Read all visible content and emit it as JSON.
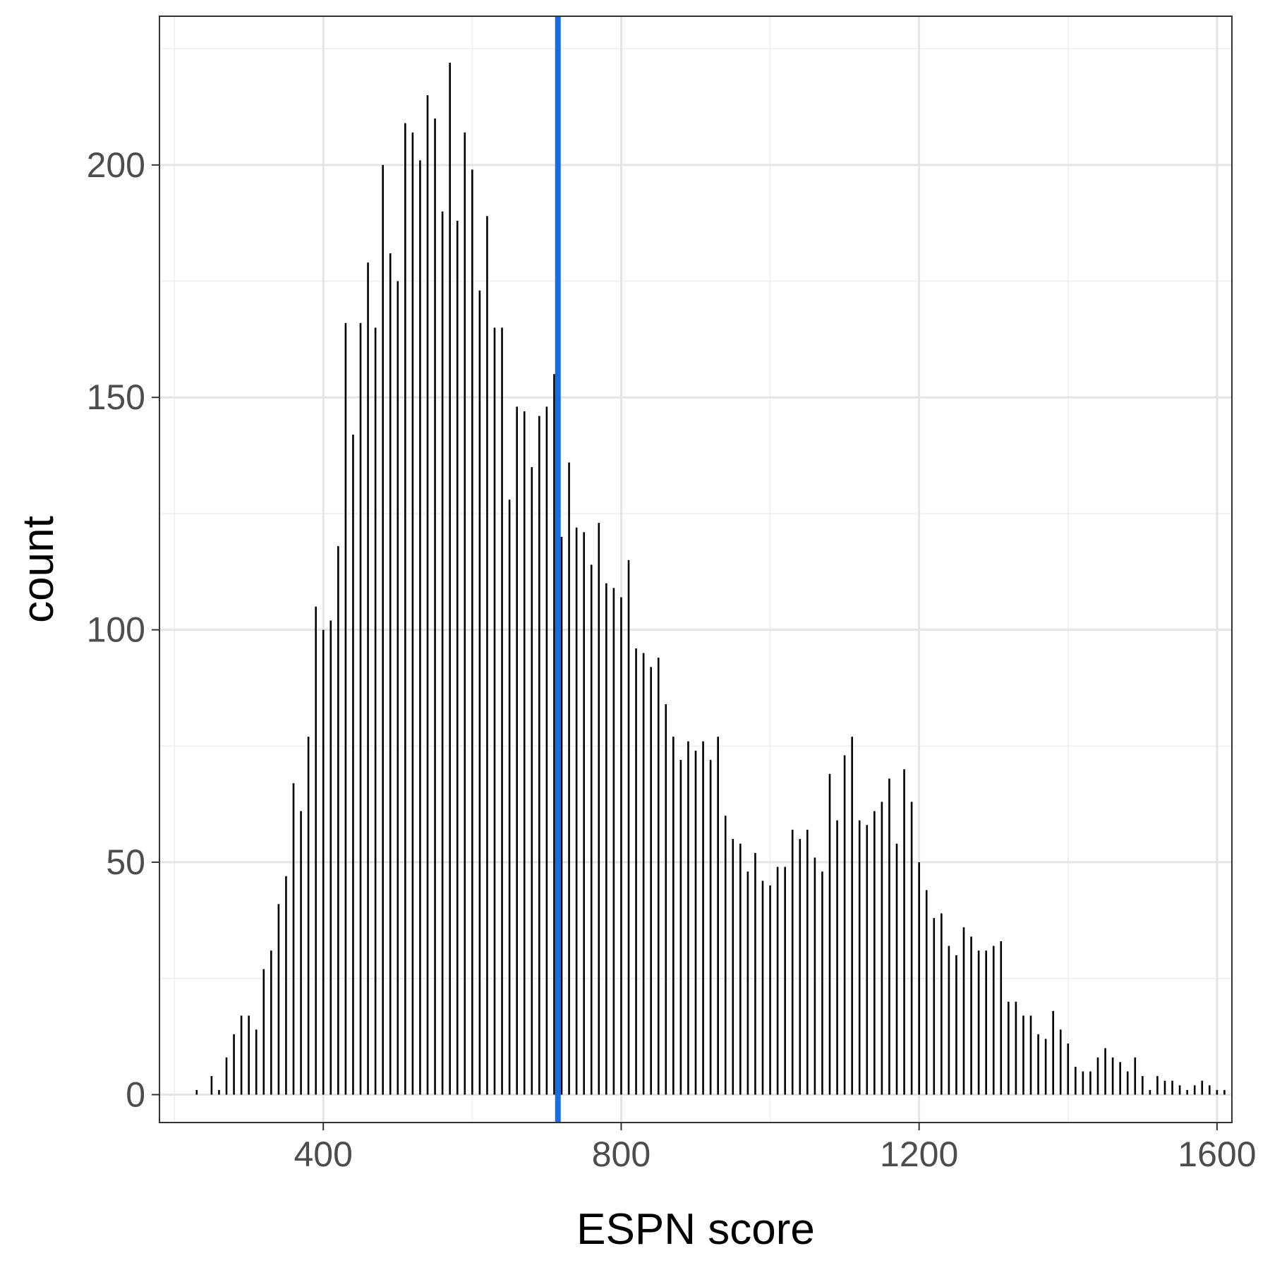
{
  "chart_data": {
    "type": "bar",
    "title": "",
    "xlabel": "ESPN score",
    "ylabel": "count",
    "xlim": [
      180,
      1620
    ],
    "ylim": [
      -6,
      232
    ],
    "x_ticks": [
      400,
      800,
      1200,
      1600
    ],
    "y_ticks": [
      0,
      50,
      100,
      150,
      200
    ],
    "x_tick_labels": [
      "400",
      "800",
      "1200",
      "1600"
    ],
    "y_tick_labels": [
      "0",
      "50",
      "100",
      "150",
      "200"
    ],
    "grid": true,
    "legend": "none",
    "reference_line": {
      "x": 715,
      "color": "#1a6ae0"
    },
    "bar_color": "#000000",
    "series": [
      {
        "x": [
          230,
          250,
          260,
          270,
          280,
          290,
          300,
          310,
          320,
          330,
          340,
          350,
          360,
          370,
          380,
          390,
          400,
          410,
          420,
          430,
          440,
          450,
          460,
          470,
          480,
          490,
          500,
          510,
          520,
          530,
          540,
          550,
          560,
          570,
          580,
          590,
          600,
          610,
          620,
          630,
          640,
          650,
          660,
          670,
          680,
          690,
          700,
          710,
          720,
          730,
          740,
          750,
          760,
          770,
          780,
          790,
          800,
          810,
          820,
          830,
          840,
          850,
          860,
          870,
          880,
          890,
          900,
          910,
          920,
          930,
          940,
          950,
          960,
          970,
          980,
          990,
          1000,
          1010,
          1020,
          1030,
          1040,
          1050,
          1060,
          1070,
          1080,
          1090,
          1100,
          1110,
          1120,
          1130,
          1140,
          1150,
          1160,
          1170,
          1180,
          1190,
          1200,
          1210,
          1220,
          1230,
          1240,
          1250,
          1260,
          1270,
          1280,
          1290,
          1300,
          1310,
          1320,
          1330,
          1340,
          1350,
          1360,
          1370,
          1380,
          1390,
          1400,
          1410,
          1420,
          1430,
          1440,
          1450,
          1460,
          1470,
          1480,
          1490,
          1500,
          1510,
          1520,
          1530,
          1540,
          1550,
          1560,
          1570,
          1580,
          1590,
          1600,
          1610
        ],
        "values": [
          1,
          4,
          1,
          8,
          13,
          17,
          17,
          14,
          27,
          31,
          41,
          47,
          67,
          61,
          77,
          105,
          100,
          102,
          118,
          166,
          142,
          166,
          179,
          165,
          200,
          181,
          175,
          209,
          207,
          201,
          215,
          210,
          190,
          222,
          188,
          207,
          199,
          173,
          189,
          165,
          165,
          128,
          148,
          147,
          135,
          146,
          148,
          155,
          120,
          136,
          122,
          121,
          114,
          123,
          110,
          109,
          107,
          115,
          96,
          95,
          92,
          94,
          84,
          77,
          72,
          76,
          74,
          76,
          72,
          77,
          60,
          55,
          54,
          48,
          52,
          46,
          45,
          49,
          49,
          57,
          55,
          57,
          51,
          48,
          69,
          59,
          73,
          77,
          59,
          58,
          61,
          63,
          68,
          54,
          70,
          63,
          50,
          44,
          38,
          39,
          32,
          30,
          36,
          34,
          31,
          31,
          32,
          33,
          20,
          20,
          17,
          17,
          13,
          12,
          18,
          14,
          11,
          6,
          5,
          5,
          8,
          10,
          8,
          7,
          5,
          8,
          4,
          1,
          4,
          3,
          3,
          2,
          1,
          2,
          3,
          2,
          1,
          1
        ]
      }
    ]
  }
}
